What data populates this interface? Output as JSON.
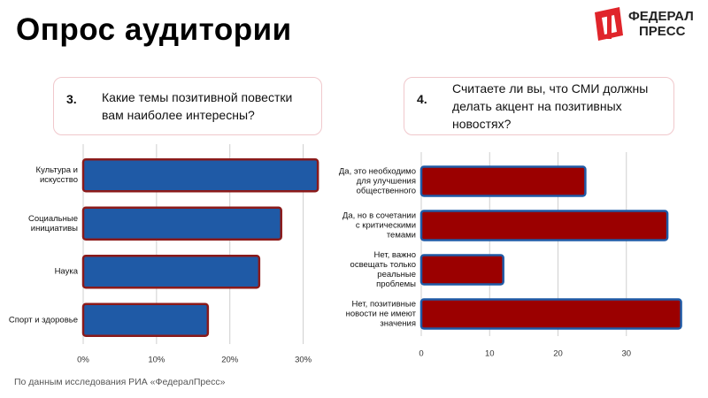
{
  "title": "Опрос аудитории",
  "logo": [
    "ФЕДЕРАЛ",
    "ПРЕСС"
  ],
  "footer": "По данным исследования РИА «ФедералПресс»",
  "chart_data": [
    {
      "type": "bar",
      "orientation": "horizontal",
      "number": "3.",
      "question": "Какие темы позитивной повестки вам наиболее интересны?",
      "categories": [
        "Культура и искусство",
        "Социальные инициативы",
        "Наука",
        "Спорт и здоровье"
      ],
      "values": [
        32,
        27,
        24,
        17
      ],
      "color": "#1f5aa6",
      "edgecolor": "#8b1a1a",
      "xlim": [
        0,
        35
      ],
      "xticks": [
        {
          "value": 0,
          "label": "0%"
        },
        {
          "value": 10,
          "label": "10%"
        },
        {
          "value": 20,
          "label": "20%"
        },
        {
          "value": 30,
          "label": "30%"
        }
      ],
      "grid": true
    },
    {
      "type": "bar",
      "orientation": "horizontal",
      "number": "4.",
      "question": "Считаете ли вы, что СМИ должны делать акцент на позитивных новостях?",
      "categories": [
        "Да, это необходимо для улучшения общественного",
        "Да, но в сочетании с критическими темами",
        "Нет, важно освещать только реальные проблемы",
        "Нет, позитивные новости не имеют значения"
      ],
      "values": [
        24,
        36,
        12,
        38
      ],
      "color": "#9b0000",
      "edgecolor": "#1f5aa6",
      "xlim": [
        0,
        40
      ],
      "xticks": [
        0,
        10,
        20,
        30
      ],
      "grid": true
    }
  ]
}
